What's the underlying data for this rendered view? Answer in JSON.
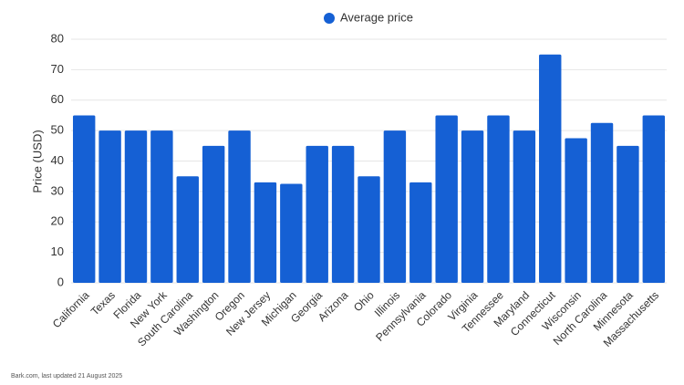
{
  "chart_data": {
    "type": "bar",
    "legend": "Average price",
    "ylabel": "Price (USD)",
    "footer": "Bark.com, last updated 21 August 2025",
    "color": "#1560d4",
    "categories": [
      "California",
      "Texas",
      "Florida",
      "New York",
      "South Carolina",
      "Washington",
      "Oregon",
      "New Jersey",
      "Michigan",
      "Georgia",
      "Arizona",
      "Ohio",
      "Illinois",
      "Pennsylvania",
      "Colorado",
      "Virginia",
      "Tennessee",
      "Maryland",
      "Connecticut",
      "Wisconsin",
      "North Carolina",
      "Minnesota",
      "Massachusetts"
    ],
    "values": [
      55,
      50,
      50,
      50,
      35,
      45,
      50,
      33,
      32.5,
      45,
      45,
      35,
      50,
      33,
      55,
      50,
      55,
      50,
      75,
      47.5,
      52.5,
      45,
      55
    ],
    "ylim": [
      0,
      80
    ],
    "yticks": [
      0,
      10,
      20,
      30,
      40,
      50,
      60,
      70,
      80
    ],
    "grid": true
  }
}
